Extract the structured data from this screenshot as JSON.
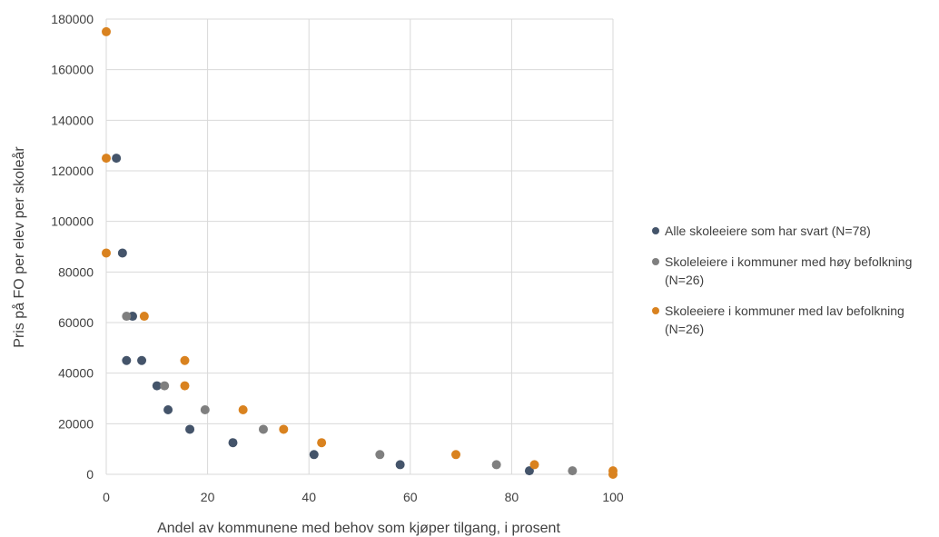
{
  "chart_data": {
    "type": "scatter",
    "xlabel": "Andel av kommunene med behov som kjøper tilgang, i prosent",
    "ylabel": "Pris på FO per elev per skoleår",
    "xlim": [
      0,
      100
    ],
    "ylim": [
      0,
      180000
    ],
    "xticks": [
      "0",
      "20",
      "40",
      "60",
      "80",
      "100"
    ],
    "yticks": [
      "0",
      "20000",
      "40000",
      "60000",
      "80000",
      "100000",
      "120000",
      "140000",
      "160000",
      "180000"
    ],
    "xtick_values": [
      0,
      20,
      40,
      60,
      80,
      100
    ],
    "ytick_values": [
      0,
      20000,
      40000,
      60000,
      80000,
      100000,
      120000,
      140000,
      160000,
      180000
    ],
    "grid": "vertical and horizontal",
    "legend_position": "right",
    "series": [
      {
        "name": "Alle skoleeiere som har svart (N=78)",
        "color": "#44546a",
        "points": [
          [
            2,
            125000
          ],
          [
            3.2,
            87500
          ],
          [
            5.2,
            62500
          ],
          [
            4,
            45000
          ],
          [
            7,
            45000
          ],
          [
            10,
            35000
          ],
          [
            12.2,
            25500
          ],
          [
            16.5,
            17800
          ],
          [
            25,
            12500
          ],
          [
            41,
            7800
          ],
          [
            58,
            3800
          ],
          [
            83.5,
            1400
          ]
        ]
      },
      {
        "name": "Skoleleiere i kommuner med høy befolkning (N=26)",
        "color": "#7f7f7f",
        "points": [
          [
            4,
            62500
          ],
          [
            11.5,
            35000
          ],
          [
            19.5,
            25500
          ],
          [
            31,
            17800
          ],
          [
            54,
            7800
          ],
          [
            77,
            3800
          ],
          [
            92,
            1400
          ]
        ]
      },
      {
        "name": "Skoleeiere i kommuner med lav befolkning (N=26)",
        "color": "#d9821f",
        "points": [
          [
            0,
            175000
          ],
          [
            0,
            125000
          ],
          [
            0,
            87500
          ],
          [
            7.5,
            62500
          ],
          [
            15.5,
            45000
          ],
          [
            15.5,
            35000
          ],
          [
            27,
            25500
          ],
          [
            35,
            17800
          ],
          [
            42.5,
            12500
          ],
          [
            69,
            7800
          ],
          [
            84.5,
            3800
          ],
          [
            100,
            1400
          ],
          [
            100,
            0
          ]
        ]
      }
    ]
  },
  "legend": {
    "item1": "Alle skoleeiere som har svart (N=78)",
    "item2": "Skoleleiere i kommuner med høy befolkning (N=26)",
    "item3": "Skoleeiere i kommuner med lav befolkning (N=26)"
  }
}
